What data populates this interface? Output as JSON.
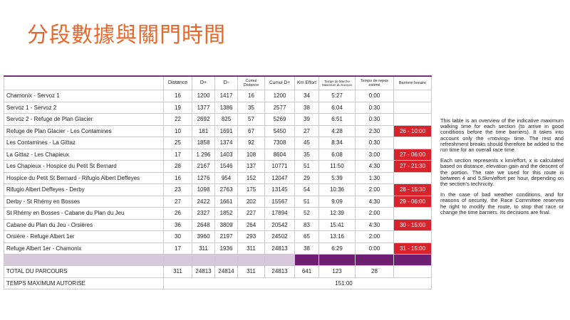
{
  "title": "分段數據與關門時間",
  "headers": [
    "",
    "Distance",
    "D+",
    "D-",
    "Cumul Distance",
    "Cumul D+",
    "Km Effort",
    "Temps de Marche Maximum du tronçon",
    "Temps de repos estimé",
    "Barriere horaire"
  ],
  "rows": [
    {
      "name": "Chamonix - Servoz 1",
      "dist": "16",
      "dplus": "1200",
      "dminus": "1417",
      "cdist": "16",
      "cdplus": "1200",
      "km": "34",
      "tm": "5:27",
      "tr": "0:00",
      "bh": ""
    },
    {
      "name": "Servoz 1 - Servoz 2",
      "dist": "19",
      "dplus": "1377",
      "dminus": "1386",
      "cdist": "35",
      "cdplus": "2577",
      "km": "38",
      "tm": "6:04",
      "tr": "0:30",
      "bh": ""
    },
    {
      "name": "Servoz 2 - Refuge de Plan Glacier",
      "dist": "22",
      "dplus": "2692",
      "dminus": "825",
      "cdist": "57",
      "cdplus": "5269",
      "km": "39",
      "tm": "6:51",
      "tr": "0:30",
      "bh": ""
    },
    {
      "name": "Refuge de Plan Glacier - Les Contamines",
      "dist": "10",
      "dplus": "181",
      "dminus": "1691",
      "cdist": "67",
      "cdplus": "5450",
      "km": "27",
      "tm": "4:28",
      "tr": "2:30",
      "bh": "26 - 10:00"
    },
    {
      "name": "Les Contamines - La Gittaz",
      "dist": "25",
      "dplus": "1858",
      "dminus": "1374",
      "cdist": "92",
      "cdplus": "7308",
      "km": "45",
      "tm": "8:34",
      "tr": "0:30",
      "bh": ""
    },
    {
      "name": "La Gittaz - Les Chapieux",
      "dist": "17",
      "dplus": "1 296",
      "dminus": "1403",
      "cdist": "108",
      "cdplus": "8604",
      "km": "35",
      "tm": "6:08",
      "tr": "3:00",
      "bh": "27 - 06:00"
    },
    {
      "name": "Les Chapieux - Hospice du Petit St Bernard",
      "dist": "28",
      "dplus": "2167",
      "dminus": "1546",
      "cdist": "137",
      "cdplus": "10771",
      "km": "51",
      "tm": "11:50",
      "tr": "4:30",
      "bh": "27 - 21:30"
    },
    {
      "name": "Hospice du Petit St Bernard - Rifugio Albert Deffeyes",
      "dist": "16",
      "dplus": "1276",
      "dminus": "954",
      "cdist": "152",
      "cdplus": "12047",
      "km": "29",
      "tm": "5:39",
      "tr": "1:30",
      "bh": ""
    },
    {
      "name": "Rifugio Albert Deffeyes - Derby",
      "dist": "23",
      "dplus": "1098",
      "dminus": "2763",
      "cdist": "175",
      "cdplus": "13145",
      "km": "54",
      "tm": "10:36",
      "tr": "2:00",
      "bh": "28 - 15:30"
    },
    {
      "name": "Derby - St Rhémy en Bosses",
      "dist": "27",
      "dplus": "2422",
      "dminus": "1661",
      "cdist": "202",
      "cdplus": "15567",
      "km": "51",
      "tm": "9:09",
      "tr": "4:30",
      "bh": "29 - 06:00"
    },
    {
      "name": "St Rhémy en Bosses - Cabane du Plan du Jeu",
      "dist": "26",
      "dplus": "2327",
      "dminus": "1852",
      "cdist": "227",
      "cdplus": "17894",
      "km": "52",
      "tm": "12:39",
      "tr": "2:00",
      "bh": ""
    },
    {
      "name": "Cabane du Plan du Jeu - Orsières",
      "dist": "36",
      "dplus": "2648",
      "dminus": "3809",
      "cdist": "264",
      "cdplus": "20542",
      "km": "83",
      "tm": "15:41",
      "tr": "4:30",
      "bh": "30 - 15:00"
    },
    {
      "name": "Orsière - Refuge Albert 1er",
      "dist": "30",
      "dplus": "3960",
      "dminus": "2197",
      "cdist": "293",
      "cdplus": "24502",
      "km": "65",
      "tm": "13:16",
      "tr": "2:00",
      "bh": ""
    },
    {
      "name": "Refuge Albert 1er - Chamonix",
      "dist": "17",
      "dplus": "311",
      "dminus": "1936",
      "cdist": "311",
      "cdplus": "24813",
      "km": "38",
      "tm": "6:29",
      "tr": "0:00",
      "bh": "31 - 15:00"
    }
  ],
  "total": {
    "name": "TOTAL DU PARCOURS",
    "dist": "311",
    "dplus": "24813",
    "dminus": "24814",
    "cdist": "311",
    "cdplus": "24813",
    "km": "641",
    "tm": "123",
    "tr": "28"
  },
  "max": {
    "name": "TEMPS MAXIMUM AUTORISE",
    "value": "151:00"
  },
  "side_text": [
    "This table is an overview of the indicative maximum walking time for each section (to arrive in good conditions before the time barriers). It takes into account only the «moving» time. The rest and refreshment breaks should therefore be added to the run time for an overall race time.",
    "Each section represents x km/effort, x is calculated based on distance, elevation gain and the descent of the portion. The rate we used for this route is between 4 and 5,5km/effort per hour, depending on the section's technicity.",
    "In the case of bad weather conditions, and for reasons of security, the Race Committee reserves he right to modify the route, to stop that race or change the time barriers. Its decisions are final."
  ],
  "colors": {
    "title": "#e8662a",
    "barrier": "#d9232c",
    "purple": "#6e1f72",
    "lavender": "#d8c8dc"
  }
}
